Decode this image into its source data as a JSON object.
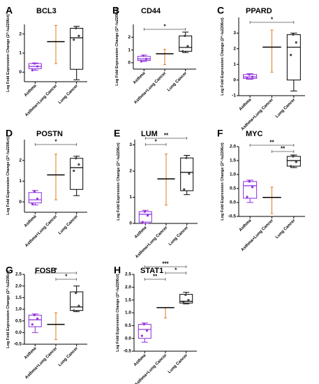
{
  "chart_data": [
    {
      "type": "box",
      "panel": "A",
      "title": "BCL3",
      "ylabel": "Log Fold Expression Change (2^-\\u2206ct)",
      "ylim": [
        -0.5,
        2.5
      ],
      "yticks": [
        0,
        1,
        2
      ],
      "categories": [
        "Asthma",
        "Asthma+Lung Cancer",
        "Lung Cancer"
      ],
      "series": [
        {
          "category": "Asthma",
          "color": "#8a2be2",
          "min": 0.1,
          "q1": 0.18,
          "median": 0.3,
          "q3": 0.45,
          "max": 0.48,
          "points": [
            0.1,
            0.3,
            0.45
          ]
        },
        {
          "category": "Asthma+Lung Cancer",
          "color": "#e07b1a",
          "min": 0.45,
          "median": 1.6,
          "max": 2.45,
          "points": []
        },
        {
          "category": "Lung Cancer",
          "color": "#000000",
          "min": -0.4,
          "q1": 0.15,
          "median": 1.8,
          "q3": 2.3,
          "max": 2.4,
          "points": [
            1.7,
            1.9,
            2.3
          ]
        }
      ],
      "significance": []
    },
    {
      "type": "box",
      "panel": "B",
      "title": "CD44",
      "ylabel": "Log Fold Expression Change (2^-\\u2206ct)",
      "ylim": [
        -0.5,
        3.0
      ],
      "yticks": [
        0,
        1,
        2
      ],
      "categories": [
        "Asthma",
        "Asthma+Lung Cancer",
        "Lung Cancer"
      ],
      "series": [
        {
          "category": "Asthma",
          "color": "#8a2be2",
          "min": 0.1,
          "q1": 0.18,
          "median": 0.3,
          "q3": 0.5,
          "max": 0.6,
          "points": [
            0.1,
            0.3,
            0.55
          ]
        },
        {
          "category": "Asthma+Lung Cancer",
          "color": "#e07b1a",
          "min": -0.15,
          "median": 0.7,
          "max": 1.05,
          "points": []
        },
        {
          "category": "Lung Cancer",
          "color": "#000000",
          "min": 0.8,
          "q1": 0.9,
          "median": 1.2,
          "q3": 2.1,
          "max": 2.4,
          "points": [
            0.9,
            1.3,
            2.1
          ]
        }
      ],
      "significance": [
        {
          "from": 0,
          "to": 2,
          "label": "*"
        }
      ]
    },
    {
      "type": "box",
      "panel": "C",
      "title": "PPARD",
      "ylabel": "Log Fold Expression Change (2^-\\u2206ct)",
      "ylim": [
        -1,
        4
      ],
      "yticks": [
        -1,
        0,
        1,
        2,
        3
      ],
      "categories": [
        "Asthma",
        "Asthma+Lung Cancer",
        "Lung Cancer"
      ],
      "series": [
        {
          "category": "Asthma",
          "color": "#8a2be2",
          "min": 0.05,
          "q1": 0.1,
          "median": 0.2,
          "q3": 0.35,
          "max": 0.4,
          "points": [
            0.1,
            0.2,
            0.35
          ]
        },
        {
          "category": "Asthma+Lung Cancer",
          "color": "#e07b1a",
          "min": 0.5,
          "median": 2.1,
          "max": 3.2,
          "points": []
        },
        {
          "category": "Lung Cancer",
          "color": "#000000",
          "min": -0.7,
          "q1": 0.0,
          "median": 2.1,
          "q3": 2.9,
          "max": 3.0,
          "points": [
            1.6,
            2.4,
            2.9
          ]
        }
      ],
      "significance": [
        {
          "from": 0,
          "to": 2,
          "label": "*"
        }
      ]
    },
    {
      "type": "box",
      "panel": "D",
      "title": "POSTN",
      "ylabel": "Log Fold Expression Change (2^-\\u2206ct)",
      "ylim": [
        -0.5,
        3.0
      ],
      "yticks": [
        0,
        1,
        2
      ],
      "categories": [
        "Asthma",
        "Asthma+Lung Cancer",
        "Lung Cancer"
      ],
      "series": [
        {
          "category": "Asthma",
          "color": "#8a2be2",
          "min": -0.15,
          "q1": -0.05,
          "median": 0.1,
          "q3": 0.45,
          "max": 0.55,
          "points": [
            -0.1,
            0.15,
            0.5
          ]
        },
        {
          "category": "Asthma+Lung Cancer",
          "color": "#e07b1a",
          "min": 0.1,
          "median": 1.3,
          "max": 2.3,
          "points": []
        },
        {
          "category": "Lung Cancer",
          "color": "#000000",
          "min": 0.3,
          "q1": 0.6,
          "median": 1.65,
          "q3": 2.1,
          "max": 2.2,
          "points": [
            1.5,
            1.8,
            2.1
          ]
        }
      ],
      "significance": [
        {
          "from": 0,
          "to": 2,
          "label": "*"
        }
      ]
    },
    {
      "type": "box",
      "panel": "E",
      "title": "LUM",
      "ylabel": "Log Fold Expression Change (2^-\\u2206ct)",
      "ylim": [
        0,
        3.2
      ],
      "yticks": [
        0,
        1,
        2,
        3
      ],
      "categories": [
        "Asthma",
        "Asthma+Lung Cancer",
        "Lung Cancer"
      ],
      "series": [
        {
          "category": "Asthma",
          "color": "#8a2be2",
          "min": 0.0,
          "q1": 0.05,
          "median": 0.35,
          "q3": 0.45,
          "max": 0.5,
          "points": [
            0.05,
            0.3,
            0.45
          ]
        },
        {
          "category": "Asthma+Lung Cancer",
          "color": "#e07b1a",
          "min": 0.7,
          "median": 1.7,
          "max": 2.65,
          "points": []
        },
        {
          "category": "Lung Cancer",
          "color": "#000000",
          "min": 1.1,
          "q1": 1.25,
          "median": 1.95,
          "q3": 2.5,
          "max": 2.6,
          "points": [
            1.3,
            1.9,
            2.5
          ]
        }
      ],
      "significance": [
        {
          "from": 0,
          "to": 1,
          "label": "*"
        },
        {
          "from": 0,
          "to": 2,
          "label": "**"
        }
      ]
    },
    {
      "type": "box",
      "panel": "F",
      "title": "MYC",
      "ylabel": "Log Fold Expression Change (2^-\\u2206ct)",
      "ylim": [
        -0.5,
        2.0
      ],
      "yticks": [
        -0.5,
        0.0,
        0.5,
        1.0,
        1.5,
        2.0
      ],
      "categories": [
        "Asthma",
        "Asthma+Lung Cancer",
        "Lung Cancer"
      ],
      "series": [
        {
          "category": "Asthma",
          "color": "#8a2be2",
          "min": 0.0,
          "q1": 0.15,
          "median": 0.6,
          "q3": 0.75,
          "max": 0.8,
          "points": [
            0.2,
            0.55,
            0.75
          ]
        },
        {
          "category": "Asthma+Lung Cancer",
          "color": "#e07b1a",
          "min": -0.4,
          "median": 0.18,
          "max": 0.55,
          "points": []
        },
        {
          "category": "Lung Cancer",
          "color": "#000000",
          "min": 1.25,
          "q1": 1.3,
          "median": 1.5,
          "q3": 1.65,
          "max": 1.7,
          "points": [
            1.3,
            1.45,
            1.65
          ]
        }
      ],
      "significance": [
        {
          "from": 0,
          "to": 2,
          "label": "**"
        },
        {
          "from": 1,
          "to": 2,
          "label": "**"
        }
      ]
    },
    {
      "type": "box",
      "panel": "G",
      "title": "FOSB",
      "ylabel": "Log Fold Expression Change (2^-\\u2206ct)",
      "ylim": [
        -0.5,
        2.5
      ],
      "yticks": [
        -0.5,
        0.0,
        0.5,
        1.0,
        1.5,
        2.0,
        2.5
      ],
      "categories": [
        "Asthma",
        "Asthma+Lung Cancer",
        "Lung Cancer"
      ],
      "series": [
        {
          "category": "Asthma",
          "color": "#8a2be2",
          "min": 0.0,
          "q1": 0.25,
          "median": 0.55,
          "q3": 0.75,
          "max": 0.8,
          "points": [
            0.35,
            0.6,
            0.75
          ]
        },
        {
          "category": "Asthma+Lung Cancer",
          "color": "#e07b1a",
          "min": -0.3,
          "median": 0.35,
          "max": 0.85,
          "points": []
        },
        {
          "category": "Lung Cancer",
          "color": "#000000",
          "min": 0.9,
          "q1": 0.95,
          "median": 1.1,
          "q3": 1.75,
          "max": 2.0,
          "points": [
            0.95,
            1.15,
            1.7
          ]
        }
      ],
      "significance": [
        {
          "from": 0,
          "to": 2,
          "label": "*"
        },
        {
          "from": 1,
          "to": 2,
          "label": "*"
        }
      ]
    },
    {
      "type": "box",
      "panel": "H",
      "title": "STAT1",
      "ylabel": "Log Fold Expression Change (2^-\\u2206ct)",
      "ylim": [
        -0.5,
        2.5
      ],
      "yticks": [
        -0.5,
        0.0,
        0.5,
        1.0,
        1.5,
        2.0,
        2.5
      ],
      "categories": [
        "Asthma",
        "Asthma+Lung Cancer",
        "Lung Cancer"
      ],
      "series": [
        {
          "category": "Asthma",
          "color": "#8a2be2",
          "min": -0.15,
          "q1": 0.0,
          "median": 0.35,
          "q3": 0.55,
          "max": 0.6,
          "points": [
            0.1,
            0.3,
            0.55
          ]
        },
        {
          "category": "Asthma+Lung Cancer",
          "color": "#e07b1a",
          "min": 0.8,
          "median": 1.2,
          "max": 1.2,
          "points": []
        },
        {
          "category": "Lung Cancer",
          "color": "#000000",
          "min": 1.35,
          "q1": 1.38,
          "median": 1.45,
          "q3": 1.72,
          "max": 1.8,
          "points": [
            1.4,
            1.5,
            1.7
          ]
        }
      ],
      "significance": [
        {
          "from": 0,
          "to": 1,
          "label": "**"
        },
        {
          "from": 1,
          "to": 2,
          "label": "*"
        },
        {
          "from": 0,
          "to": 2,
          "label": "***"
        }
      ]
    }
  ]
}
